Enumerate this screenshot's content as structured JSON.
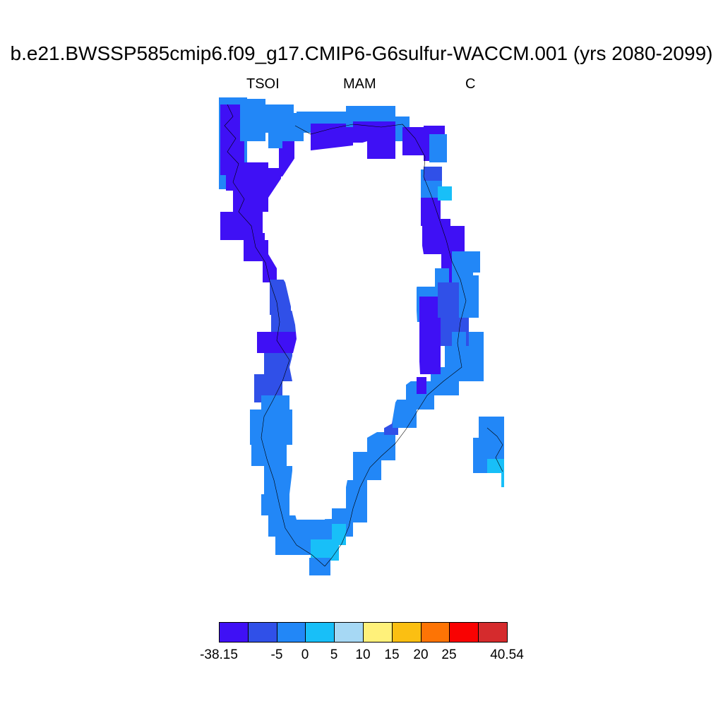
{
  "title": "b.e21.BWSSP585cmip6.f09_g17.CMIP6-G6sulfur-WACCM.001 (yrs 2080-2099)",
  "subtitle": {
    "left": "TSOI",
    "center": "MAM",
    "right": "C"
  },
  "colorbar": {
    "colors": [
      "#3f10f5",
      "#3050e8",
      "#2287f7",
      "#18bff8",
      "#a6d8f4",
      "#fff17a",
      "#fbbf12",
      "#fd7405",
      "#f90202",
      "#d52b2d"
    ],
    "labels": [
      "-38.15",
      "-5",
      "0",
      "5",
      "10",
      "15",
      "20",
      "25",
      "40.54"
    ]
  },
  "map_colors": {
    "deep": "#3f10f5",
    "mid": "#3050e8",
    "light": "#2287f7",
    "cyan": "#18bff8",
    "coast": "#000000"
  }
}
